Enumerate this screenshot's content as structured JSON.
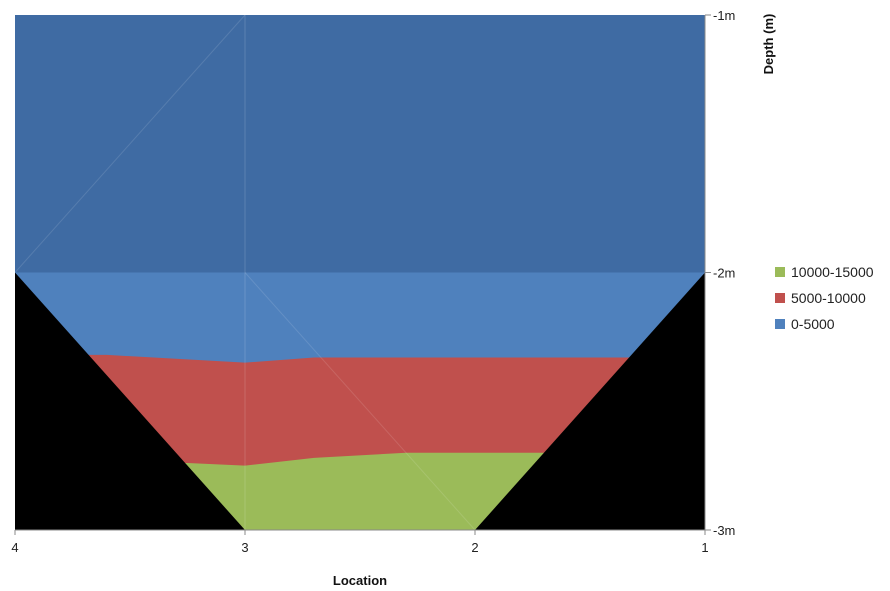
{
  "chart_data": {
    "type": "area",
    "title": "",
    "xlabel": "Location",
    "ylabel": "Depth (m)",
    "x_ticks": [
      "4",
      "3",
      "2",
      "1"
    ],
    "y_ticks": [
      "-1m",
      "-2m",
      "-3m"
    ],
    "ylim": [
      -3,
      -1
    ],
    "legend_position": "right",
    "series": [
      {
        "name": "10000-15000",
        "color": "#9bbb59",
        "upper_boundary": {
          "x": [
            3.25,
            3,
            2.7,
            2.3,
            1.7
          ],
          "depth": [
            -2.74,
            -2.75,
            -2.72,
            -2.7,
            -2.7
          ]
        }
      },
      {
        "name": "5000-10000",
        "color": "#c0504d",
        "upper_boundary": {
          "x": [
            3.6,
            3,
            2.7,
            1.3
          ],
          "depth": [
            -2.32,
            -2.35,
            -2.33,
            -2.33
          ]
        }
      },
      {
        "name": "0-5000",
        "color": "#4f81bd",
        "upper_boundary": {
          "x": [
            4,
            1
          ],
          "depth": [
            -2,
            -2
          ]
        }
      }
    ],
    "top_fill_color": "#3f6ba3",
    "mask_color": "#000000"
  }
}
